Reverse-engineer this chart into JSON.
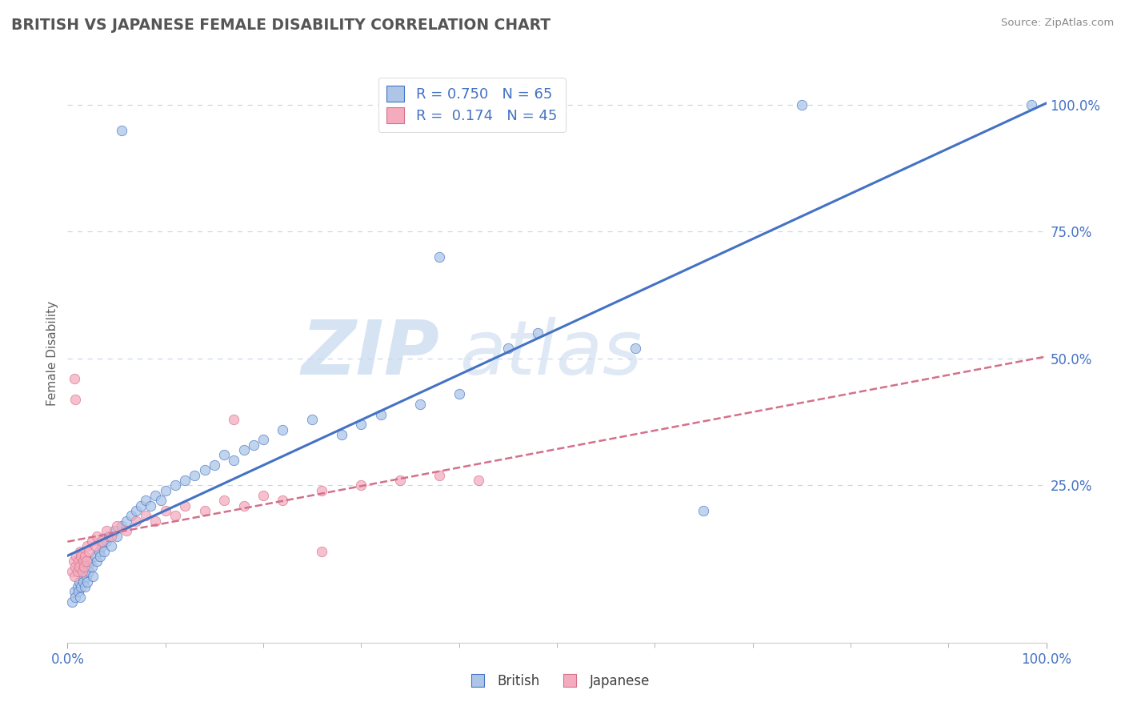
{
  "title": "BRITISH VS JAPANESE FEMALE DISABILITY CORRELATION CHART",
  "source": "Source: ZipAtlas.com",
  "ylabel": "Female Disability",
  "xlim": [
    0,
    1.0
  ],
  "ylim": [
    -0.06,
    1.08
  ],
  "xtick_labels_edge": [
    "0.0%",
    "100.0%"
  ],
  "xtick_vals_edge": [
    0.0,
    1.0
  ],
  "ytick_right_labels": [
    "25.0%",
    "50.0%",
    "75.0%",
    "100.0%"
  ],
  "ytick_right_vals": [
    0.25,
    0.5,
    0.75,
    1.0
  ],
  "R_british": 0.75,
  "N_british": 65,
  "R_japanese": 0.174,
  "N_japanese": 45,
  "british_color": "#adc6e8",
  "japanese_color": "#f5abbe",
  "regression_british_color": "#4472c4",
  "regression_japanese_color": "#d4708a",
  "background_color": "#ffffff",
  "grid_color": "#c8d8ec",
  "title_color": "#555555",
  "watermark_zip": "ZIP",
  "watermark_atlas": "atlas",
  "british_scatter": [
    [
      0.005,
      0.02
    ],
    [
      0.007,
      0.04
    ],
    [
      0.008,
      0.03
    ],
    [
      0.01,
      0.05
    ],
    [
      0.011,
      0.04
    ],
    [
      0.012,
      0.06
    ],
    [
      0.013,
      0.03
    ],
    [
      0.014,
      0.05
    ],
    [
      0.015,
      0.07
    ],
    [
      0.016,
      0.06
    ],
    [
      0.017,
      0.08
    ],
    [
      0.018,
      0.05
    ],
    [
      0.019,
      0.07
    ],
    [
      0.02,
      0.06
    ],
    [
      0.021,
      0.09
    ],
    [
      0.022,
      0.08
    ],
    [
      0.023,
      0.1
    ],
    [
      0.025,
      0.09
    ],
    [
      0.026,
      0.07
    ],
    [
      0.028,
      0.11
    ],
    [
      0.03,
      0.1
    ],
    [
      0.032,
      0.12
    ],
    [
      0.033,
      0.11
    ],
    [
      0.035,
      0.13
    ],
    [
      0.037,
      0.12
    ],
    [
      0.04,
      0.14
    ],
    [
      0.042,
      0.15
    ],
    [
      0.045,
      0.13
    ],
    [
      0.048,
      0.16
    ],
    [
      0.05,
      0.15
    ],
    [
      0.055,
      0.17
    ],
    [
      0.06,
      0.18
    ],
    [
      0.065,
      0.19
    ],
    [
      0.07,
      0.2
    ],
    [
      0.075,
      0.21
    ],
    [
      0.08,
      0.22
    ],
    [
      0.085,
      0.21
    ],
    [
      0.09,
      0.23
    ],
    [
      0.095,
      0.22
    ],
    [
      0.1,
      0.24
    ],
    [
      0.11,
      0.25
    ],
    [
      0.12,
      0.26
    ],
    [
      0.13,
      0.27
    ],
    [
      0.14,
      0.28
    ],
    [
      0.15,
      0.29
    ],
    [
      0.16,
      0.31
    ],
    [
      0.17,
      0.3
    ],
    [
      0.18,
      0.32
    ],
    [
      0.19,
      0.33
    ],
    [
      0.2,
      0.34
    ],
    [
      0.22,
      0.36
    ],
    [
      0.25,
      0.38
    ],
    [
      0.28,
      0.35
    ],
    [
      0.3,
      0.37
    ],
    [
      0.32,
      0.39
    ],
    [
      0.36,
      0.41
    ],
    [
      0.4,
      0.43
    ],
    [
      0.45,
      0.52
    ],
    [
      0.48,
      0.55
    ],
    [
      0.055,
      0.95
    ],
    [
      0.75,
      1.0
    ],
    [
      0.38,
      0.7
    ],
    [
      0.58,
      0.52
    ],
    [
      0.65,
      0.2
    ],
    [
      0.985,
      1.0
    ]
  ],
  "japanese_scatter": [
    [
      0.005,
      0.08
    ],
    [
      0.006,
      0.1
    ],
    [
      0.007,
      0.07
    ],
    [
      0.008,
      0.09
    ],
    [
      0.009,
      0.11
    ],
    [
      0.01,
      0.08
    ],
    [
      0.011,
      0.1
    ],
    [
      0.012,
      0.09
    ],
    [
      0.013,
      0.12
    ],
    [
      0.014,
      0.11
    ],
    [
      0.015,
      0.08
    ],
    [
      0.016,
      0.1
    ],
    [
      0.017,
      0.09
    ],
    [
      0.018,
      0.11
    ],
    [
      0.019,
      0.1
    ],
    [
      0.02,
      0.13
    ],
    [
      0.022,
      0.12
    ],
    [
      0.025,
      0.14
    ],
    [
      0.028,
      0.13
    ],
    [
      0.03,
      0.15
    ],
    [
      0.035,
      0.14
    ],
    [
      0.04,
      0.16
    ],
    [
      0.045,
      0.15
    ],
    [
      0.05,
      0.17
    ],
    [
      0.06,
      0.16
    ],
    [
      0.07,
      0.18
    ],
    [
      0.08,
      0.19
    ],
    [
      0.09,
      0.18
    ],
    [
      0.1,
      0.2
    ],
    [
      0.11,
      0.19
    ],
    [
      0.12,
      0.21
    ],
    [
      0.14,
      0.2
    ],
    [
      0.16,
      0.22
    ],
    [
      0.18,
      0.21
    ],
    [
      0.2,
      0.23
    ],
    [
      0.22,
      0.22
    ],
    [
      0.26,
      0.24
    ],
    [
      0.3,
      0.25
    ],
    [
      0.34,
      0.26
    ],
    [
      0.38,
      0.27
    ],
    [
      0.42,
      0.26
    ],
    [
      0.007,
      0.46
    ],
    [
      0.008,
      0.42
    ],
    [
      0.17,
      0.38
    ],
    [
      0.26,
      0.12
    ]
  ],
  "legend_british_label": "R = 0.750   N = 65",
  "legend_japanese_label": "R =  0.174   N = 45"
}
